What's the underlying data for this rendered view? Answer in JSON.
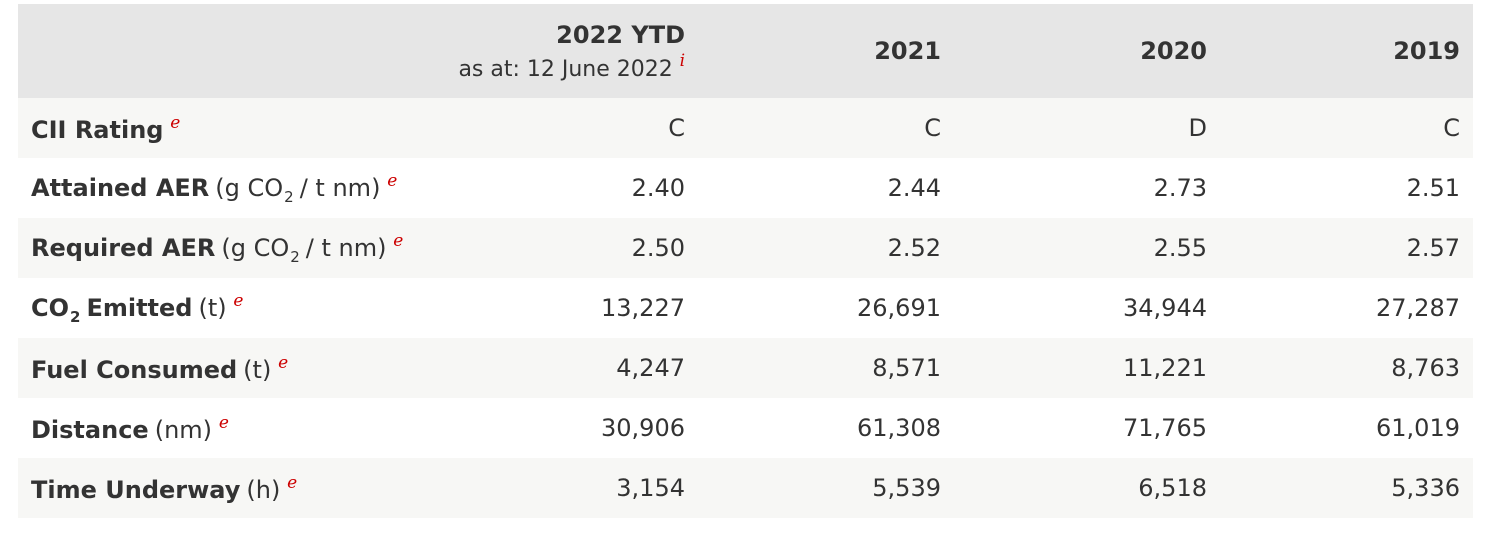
{
  "table": {
    "columns": [
      {
        "title": "2022 YTD",
        "subtitle": "as at: 12 June 2022",
        "note": "i"
      },
      {
        "title": "2021"
      },
      {
        "title": "2020"
      },
      {
        "title": "2019"
      }
    ],
    "rows": [
      {
        "label": [
          {
            "text": "CII Rating",
            "style": "bold"
          },
          {
            "text": "e",
            "style": "note"
          }
        ],
        "values": [
          "C",
          "C",
          "D",
          "C"
        ]
      },
      {
        "label": [
          {
            "text": "Attained AER",
            "style": "bold"
          },
          {
            "text": "(g CO",
            "style": "normal"
          },
          {
            "text": "2",
            "style": "sub"
          },
          {
            "text": "/ t nm)",
            "style": "normal"
          },
          {
            "text": "e",
            "style": "note"
          }
        ],
        "values": [
          "2.40",
          "2.44",
          "2.73",
          "2.51"
        ]
      },
      {
        "label": [
          {
            "text": "Required AER",
            "style": "bold"
          },
          {
            "text": "(g CO",
            "style": "normal"
          },
          {
            "text": "2",
            "style": "sub"
          },
          {
            "text": "/ t nm)",
            "style": "normal"
          },
          {
            "text": "e",
            "style": "note"
          }
        ],
        "values": [
          "2.50",
          "2.52",
          "2.55",
          "2.57"
        ]
      },
      {
        "label": [
          {
            "text": "CO",
            "style": "bold"
          },
          {
            "text": "2",
            "style": "sub-bold"
          },
          {
            "text": "Emitted",
            "style": "bold"
          },
          {
            "text": "(t)",
            "style": "normal"
          },
          {
            "text": "e",
            "style": "note"
          }
        ],
        "values": [
          "13,227",
          "26,691",
          "34,944",
          "27,287"
        ]
      },
      {
        "label": [
          {
            "text": "Fuel Consumed",
            "style": "bold"
          },
          {
            "text": "(t)",
            "style": "normal"
          },
          {
            "text": "e",
            "style": "note"
          }
        ],
        "values": [
          "4,247",
          "8,571",
          "11,221",
          "8,763"
        ]
      },
      {
        "label": [
          {
            "text": "Distance",
            "style": "bold"
          },
          {
            "text": "(nm)",
            "style": "normal"
          },
          {
            "text": "e",
            "style": "note"
          }
        ],
        "values": [
          "30,906",
          "61,308",
          "71,765",
          "61,019"
        ]
      },
      {
        "label": [
          {
            "text": "Time Underway",
            "style": "bold"
          },
          {
            "text": "(h)",
            "style": "normal"
          },
          {
            "text": "e",
            "style": "note"
          }
        ],
        "values": [
          "3,154",
          "5,539",
          "6,518",
          "5,336"
        ]
      }
    ]
  }
}
